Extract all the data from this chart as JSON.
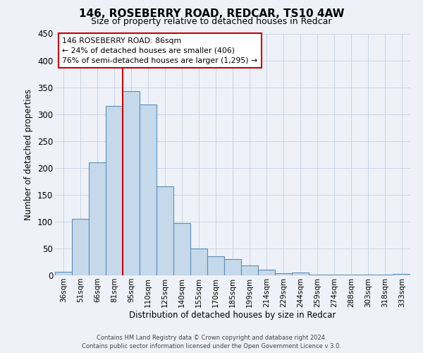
{
  "title": "146, ROSEBERRY ROAD, REDCAR, TS10 4AW",
  "subtitle": "Size of property relative to detached houses in Redcar",
  "xlabel": "Distribution of detached houses by size in Redcar",
  "ylabel": "Number of detached properties",
  "bar_labels": [
    "36sqm",
    "51sqm",
    "66sqm",
    "81sqm",
    "95sqm",
    "110sqm",
    "125sqm",
    "140sqm",
    "155sqm",
    "170sqm",
    "185sqm",
    "199sqm",
    "214sqm",
    "229sqm",
    "244sqm",
    "259sqm",
    "274sqm",
    "288sqm",
    "303sqm",
    "318sqm",
    "333sqm"
  ],
  "bar_values": [
    7,
    105,
    210,
    315,
    343,
    318,
    165,
    97,
    50,
    36,
    30,
    18,
    10,
    4,
    5,
    1,
    1,
    1,
    1,
    1,
    2
  ],
  "bar_color": "#c5d9ea",
  "bar_edge_color": "#5b8db8",
  "vline_color": "#cc0000",
  "ylim": [
    0,
    450
  ],
  "yticks": [
    0,
    50,
    100,
    150,
    200,
    250,
    300,
    350,
    400,
    450
  ],
  "annotation_title": "146 ROSEBERRY ROAD: 86sqm",
  "annotation_line1": "← 24% of detached houses are smaller (406)",
  "annotation_line2": "76% of semi-detached houses are larger (1,295) →",
  "annotation_box_color": "#ffffff",
  "annotation_box_edge": "#cc0000",
  "footer1": "Contains HM Land Registry data © Crown copyright and database right 2024.",
  "footer2": "Contains public sector information licensed under the Open Government Licence v 3.0.",
  "grid_color": "#c8d4e4",
  "background_color": "#eef2f8"
}
